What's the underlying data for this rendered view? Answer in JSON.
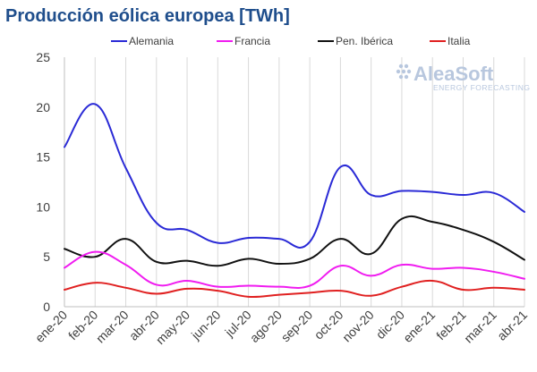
{
  "chart_data": {
    "type": "line",
    "title": "Producción eólica europea [TWh]",
    "xlabel": "",
    "ylabel": "",
    "categories": [
      "ene-20",
      "feb-20",
      "mar-20",
      "abr-20",
      "may-20",
      "jun-20",
      "jul-20",
      "ago-20",
      "sep-20",
      "oct-20",
      "nov-20",
      "dic-20",
      "ene-21",
      "feb-21",
      "mar-21",
      "abr-21"
    ],
    "ylim": [
      0,
      25
    ],
    "yticks": [
      "0",
      "5",
      "10",
      "15",
      "20",
      "25"
    ],
    "grid": "vertical",
    "legend_position": "top",
    "series": [
      {
        "name": "Alemania",
        "color": "#2a2ad6",
        "values": [
          16.0,
          20.3,
          13.9,
          8.4,
          7.7,
          6.4,
          6.9,
          6.8,
          6.5,
          14.0,
          11.2,
          11.6,
          11.5,
          11.2,
          11.4,
          9.5
        ]
      },
      {
        "name": "Francia",
        "color": "#f01cf0",
        "values": [
          3.9,
          5.5,
          4.2,
          2.2,
          2.6,
          2.0,
          2.1,
          2.0,
          2.1,
          4.1,
          3.1,
          4.2,
          3.8,
          3.9,
          3.5,
          2.8
        ]
      },
      {
        "name": "Pen. Ibérica",
        "color": "#111111",
        "values": [
          5.8,
          5.0,
          6.8,
          4.5,
          4.6,
          4.1,
          4.8,
          4.3,
          4.8,
          6.8,
          5.3,
          8.8,
          8.5,
          7.7,
          6.5,
          4.7
        ]
      },
      {
        "name": "Italia",
        "color": "#e02020",
        "values": [
          1.7,
          2.4,
          1.9,
          1.3,
          1.8,
          1.6,
          1.0,
          1.2,
          1.4,
          1.6,
          1.1,
          2.0,
          2.6,
          1.7,
          1.9,
          1.7
        ]
      }
    ]
  },
  "watermark": {
    "brand": "AleaSoft",
    "tagline": "ENERGY FORECASTING"
  }
}
